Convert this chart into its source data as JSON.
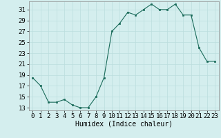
{
  "x": [
    0,
    1,
    2,
    3,
    4,
    5,
    6,
    7,
    8,
    9,
    10,
    11,
    12,
    13,
    14,
    15,
    16,
    17,
    18,
    19,
    20,
    21,
    22,
    23
  ],
  "y": [
    18.5,
    17.0,
    14.0,
    14.0,
    14.5,
    13.5,
    13.0,
    13.0,
    15.0,
    18.5,
    27.0,
    28.5,
    30.5,
    30.0,
    31.0,
    32.0,
    31.0,
    31.0,
    32.0,
    30.0,
    30.0,
    24.0,
    21.5,
    21.5
  ],
  "line_color": "#1a6b5a",
  "marker_color": "#1a6b5a",
  "bg_color": "#d4eeee",
  "grid_color": "#bbdddd",
  "xlabel": "Humidex (Indice chaleur)",
  "xlim": [
    -0.5,
    23.5
  ],
  "ylim": [
    12.5,
    32.5
  ],
  "yticks": [
    13,
    15,
    17,
    19,
    21,
    23,
    25,
    27,
    29,
    31
  ],
  "xtick_labels": [
    "0",
    "1",
    "2",
    "3",
    "4",
    "5",
    "6",
    "7",
    "8",
    "9",
    "10",
    "11",
    "12",
    "13",
    "14",
    "15",
    "16",
    "17",
    "18",
    "19",
    "20",
    "21",
    "22",
    "23"
  ],
  "xlabel_fontsize": 7,
  "tick_fontsize": 6.5
}
